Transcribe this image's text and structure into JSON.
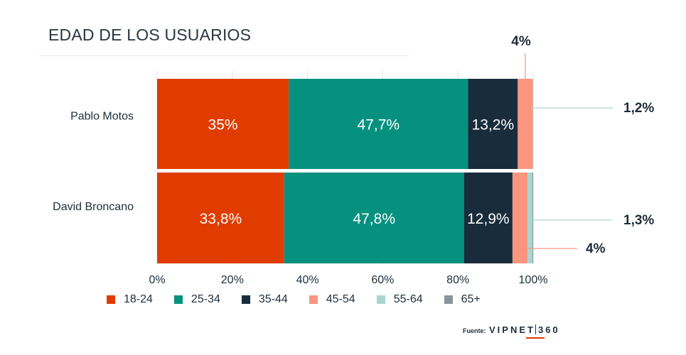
{
  "title": "EDAD DE LOS USUARIOS",
  "source_label": "Fuente:",
  "logo_left": "VIPNET",
  "logo_right": "360",
  "chart_data": {
    "type": "bar",
    "orientation": "horizontal",
    "stacked": true,
    "categories": [
      "Pablo Motos",
      "David Broncano"
    ],
    "series": [
      {
        "name": "18-24",
        "color": "#e03c00",
        "values": [
          35,
          33.8
        ],
        "labels": [
          "35%",
          "33,8%"
        ]
      },
      {
        "name": "25-34",
        "color": "#06917f",
        "values": [
          47.7,
          47.8
        ],
        "labels": [
          "47,7%",
          "47,8%"
        ]
      },
      {
        "name": "35-44",
        "color": "#182c3c",
        "values": [
          13.2,
          12.9
        ],
        "labels": [
          "13,2%",
          "12,9%"
        ]
      },
      {
        "name": "45-54",
        "color": "#fa9580",
        "values": [
          4,
          4
        ],
        "labels": [
          "4%",
          "4%"
        ]
      },
      {
        "name": "55-64",
        "color": "#a8d6cf",
        "values": [
          1.2,
          1.3
        ],
        "labels": [
          "1,2%",
          "1,3%"
        ]
      },
      {
        "name": "65+",
        "color": "#8a9599",
        "values": [
          0.6,
          0.6
        ],
        "labels": [
          "",
          ""
        ]
      }
    ],
    "x_ticks": [
      "0%",
      "20%",
      "40%",
      "60%",
      "80%",
      "100%"
    ],
    "x_tick_values": [
      0,
      20,
      40,
      60,
      80,
      100
    ],
    "xlim": [
      0,
      100
    ],
    "grid": true,
    "legend_position": "bottom"
  }
}
